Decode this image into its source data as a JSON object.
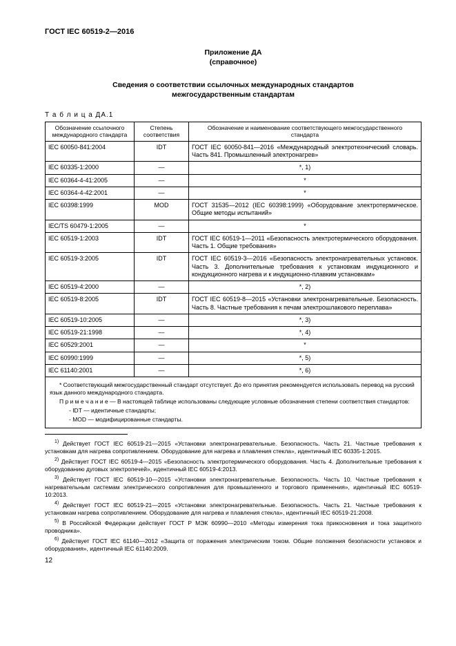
{
  "docId": "ГОСТ IEC 60519-2—2016",
  "appendix": {
    "title": "Приложение ДА",
    "subtitle": "(справочное)"
  },
  "sectionTitle1": "Сведения о соответствии ссылочных международных стандартов",
  "sectionTitle2": "межгосударственным стандартам",
  "tableCaption": "Т а б л и ц а  ДА.1",
  "headers": {
    "h1a": "Обозначение ссылочного",
    "h1b": "международного стандарта",
    "h2a": "Степень",
    "h2b": "соответствия",
    "h3a": "Обозначение и наименование соответствующего межгосударственного",
    "h3b": "стандарта"
  },
  "rows": [
    {
      "c1": "IEC 60050-841:2004",
      "c2": "IDT",
      "c3": "ГОСТ IEC 60050-841—2016 «Международный электротехнический словарь. Часть 841. Промышленный электронагрев»"
    },
    {
      "c1": "IEC 60335-1:2000",
      "c2": "—",
      "c3": "*, 1)",
      "center": true
    },
    {
      "c1": "IEC 60364-4-41:2005",
      "c2": "—",
      "c3": "*",
      "center": true
    },
    {
      "c1": "IEC 60364-4-42:2001",
      "c2": "—",
      "c3": "*",
      "center": true
    },
    {
      "c1": "IEC 60398:1999",
      "c2": "MOD",
      "c3": "ГОСТ 31535—2012 (IEC 60398:1999) «Оборудование электротермическое. Общие методы испытаний»"
    },
    {
      "c1": "IEC/TS 60479-1:2005",
      "c2": "—",
      "c3": "*",
      "center": true
    },
    {
      "c1": "IEC 60519-1:2003",
      "c2": "IDT",
      "c3": "ГОСТ IEC 60519-1—2011 «Безопасность электротермического оборудования. Часть 1. Общие требования»"
    },
    {
      "c1": "IEC 60519-3:2005",
      "c2": "IDT",
      "c3": "ГОСТ IEC 60519-3—2016 «Безопасность электронагревательных установок. Часть 3. Дополнительные требования к установкам индукционного и кондукционного нагрева и к индукционно-плавким установкам»"
    },
    {
      "c1": "IEC 60519-4:2000",
      "c2": "—",
      "c3": "*, 2)",
      "center": true
    },
    {
      "c1": "IEC 60519-8:2005",
      "c2": "IDT",
      "c3": "ГОСТ IEC 60519-8—2015 «Установки электронагревательные. Безопасность. Часть 8. Частные требования к печам электрошлакового переплава»"
    },
    {
      "c1": "IEC 60519-10:2005",
      "c2": "—",
      "c3": "*, 3)",
      "center": true
    },
    {
      "c1": "IEC 60519-21:1998",
      "c2": "—",
      "c3": "*, 4)",
      "center": true
    },
    {
      "c1": "IEC 60529:2001",
      "c2": "—",
      "c3": "*",
      "center": true
    },
    {
      "c1": "IEC 60990:1999",
      "c2": "—",
      "c3": "*, 5)",
      "center": true
    },
    {
      "c1": "IEC 61140:2001",
      "c2": "—",
      "c3": "*, 6)",
      "center": true
    }
  ],
  "noteStar": "* Соответствующий межгосударственный стандарт отсутствует. До его принятия рекомендуется использовать перевод на русский язык данного международного стандарта.",
  "noteLabel": "П р и м е ч а н и е",
  "noteText": "—  В настоящей таблице использованы следующие условные обозначения степени соответствия стандартов:",
  "noteIdt": "- IDT — идентичные стандарты;",
  "noteMod": "- MOD — модифицированные стандарты.",
  "footnotes": [
    {
      "n": "1)",
      "t": " Действует ГОСТ IEC 60519-21—2015 «Установки электронагревательные. Безопасность. Часть 21. Частные требования к установкам для нагрева сопротивлением. Оборудование для нагрева и плавления стекла», идентичный IEC 60335-1:2015."
    },
    {
      "n": "2)",
      "t": " Действует ГОСТ IEC 60519-4—2015 «Безопасность электротермического оборудования. Часть 4. Дополнительные требования к оборудованию дуговых электропечей», идентичный IEC 60519-4:2013."
    },
    {
      "n": "3)",
      "t": " Действует ГОСТ IEC 60519-10—2015 «Установки электронагревательные. Безопасность. Часть 10. Частные требования к нагревательным системам электрического сопротивления для промышленного и торгового применения», идентичный IEC 60519-10:2013."
    },
    {
      "n": "4)",
      "t": " Действует ГОСТ IEC 60519-21—2015 «Установки электронагревательные. Безопасность. Часть 21. Частные требования к установкам нагрева сопротивлением. Оборудование для нагрева и плавления стекла», идентичный IEC 60519-21:2008."
    },
    {
      "n": "5)",
      "t": " В Российской Федерации действует ГОСТ Р МЭК 60990—2010 «Методы измерения тока прикосновения и тока защитного проводника»."
    },
    {
      "n": "6)",
      "t": " Действует ГОСТ IEC 61140—2012 «Защита от поражения электрическим током. Общие положения безопасности установок и оборудования», идентичный IEC 61140:2009."
    }
  ],
  "pageNum": "12"
}
